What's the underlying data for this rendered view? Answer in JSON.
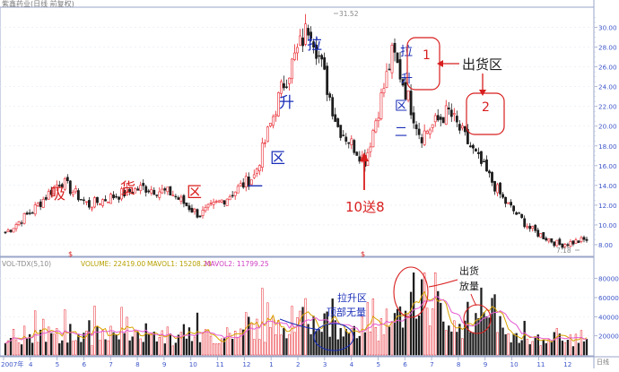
{
  "header": {
    "title": "紫鑫药业(日线 前复权)"
  },
  "price_axis": {
    "labels": [
      "30.00",
      "28.00",
      "26.00",
      "24.00",
      "22.00",
      "20.00",
      "18.00",
      "16.00",
      "14.00",
      "12.00",
      "10.00",
      "8.00"
    ]
  },
  "volume_axis": {
    "labels": [
      "80000",
      "60000",
      "40000",
      "20000"
    ]
  },
  "time_axis": {
    "labels": [
      "2007年",
      "4",
      "5",
      "6",
      "7",
      "8",
      "9",
      "10",
      "11",
      "12",
      "1",
      "2",
      "3",
      "4",
      "5",
      "6",
      "7",
      "8",
      "9",
      "10",
      "11",
      "12"
    ]
  },
  "price_markers": {
    "high": "31.52",
    "low": "7.18"
  },
  "indicator_legend": {
    "name": "VOL-TDX(5,10)",
    "volume": "VOLUME: 22419.00",
    "mavol1": "MAVOL1: 15208.20",
    "mavol2": "MAVOL2: 11799.25"
  },
  "annotations": {
    "chars_xi": "吸",
    "chars_huo": "货",
    "chars_qu": "区",
    "chars_yi": "一",
    "chars_qu2": "区",
    "chars_sheng": "升",
    "chars_la": "拉",
    "chars_la2": "拉",
    "chars_sheng2": "升",
    "chars_qu3": "区",
    "chars_er": "二",
    "dividend": "10送8",
    "zone_1": "1",
    "zone_2": "2",
    "chuhuo_qu": "出货区",
    "volume_top_line1": "拉升区",
    "volume_top_line2": "顶部无量",
    "volume_out_line1": "出货",
    "volume_out_line2": "放量",
    "event_mark_1": "$",
    "event_mark_2": "$",
    "daily_tag": "日线"
  },
  "colors": {
    "up": "#e8232b",
    "down": "#1d1d1d",
    "ma1": "#d9a400",
    "ma2": "#e65ad2",
    "annotation_red": "#d81e1e",
    "annotation_blue": "#1b2fb8",
    "axis_blue": "#3d56c9"
  },
  "chart_data": {
    "type": "candlestick",
    "title": "紫鑫药业(日线 前复权)",
    "price_ylim": [
      7,
      31.5
    ],
    "price_high": 31.52,
    "price_low": 7.18,
    "price_path_monthly": [
      {
        "month": "2007-03",
        "close": 9.2
      },
      {
        "month": "2007-04",
        "close": 11.5
      },
      {
        "month": "2007-05",
        "close": 14.5
      },
      {
        "month": "2007-06",
        "close": 12.0
      },
      {
        "month": "2007-07",
        "close": 13.0
      },
      {
        "month": "2007-08",
        "close": 13.8
      },
      {
        "month": "2007-09",
        "close": 13.2
      },
      {
        "month": "2007-10",
        "close": 11.0
      },
      {
        "month": "2007-11",
        "close": 12.8
      },
      {
        "month": "2007-12",
        "close": 15.0
      },
      {
        "month": "2008-01",
        "close": 24.0
      },
      {
        "month": "2008-02",
        "close": 30.5
      },
      {
        "month": "2008-03",
        "close": 20.0
      },
      {
        "month": "2008-04",
        "close": 16.5
      },
      {
        "month": "2008-05",
        "close": 27.5
      },
      {
        "month": "2008-06",
        "close": 19.0
      },
      {
        "month": "2008-07",
        "close": 21.5
      },
      {
        "month": "2008-08",
        "close": 17.0
      },
      {
        "month": "2008-09",
        "close": 12.5
      },
      {
        "month": "2008-10",
        "close": 9.5
      },
      {
        "month": "2008-11",
        "close": 8.0
      },
      {
        "month": "2008-12",
        "close": 8.5
      }
    ],
    "volume_ylim": [
      0,
      90000
    ],
    "volume_legend": {
      "VOLUME": 22419.0,
      "MAVOL1": 15208.2,
      "MAVOL2": 11799.25
    }
  }
}
